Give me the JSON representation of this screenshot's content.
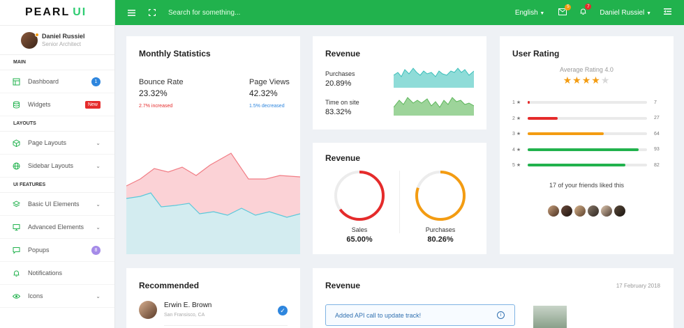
{
  "logo": {
    "brand": "PEARL",
    "suffix": "UI"
  },
  "profile": {
    "name": "Daniel Russiel",
    "role": "Senior Architect"
  },
  "sidebar": {
    "sections": [
      "MAIN",
      "LAYOUTS",
      "UI FEATURES"
    ],
    "items": [
      {
        "label": "Dashboard",
        "badge": "1"
      },
      {
        "label": "Widgets",
        "badge": "New"
      },
      {
        "label": "Page Layouts"
      },
      {
        "label": "Sidebar Layouts"
      },
      {
        "label": "Basic UI Elements"
      },
      {
        "label": "Advanced Elements"
      },
      {
        "label": "Popups",
        "badge": "8"
      },
      {
        "label": "Notifications"
      },
      {
        "label": "Icons"
      }
    ]
  },
  "topbar": {
    "search_placeholder": "Search for something...",
    "language": "English",
    "mail_count": "5",
    "notif_count": "7",
    "user": "Daniel Russiel"
  },
  "monthly": {
    "title": "Monthly Statistics",
    "bounce_label": "Bounce Rate",
    "bounce_value": "23.32%",
    "bounce_note": "2.7% increased",
    "views_label": "Page Views",
    "views_value": "42.32%",
    "views_note": "1.5% decreased"
  },
  "revenue1": {
    "title": "Revenue",
    "purchases_label": "Purchases",
    "purchases_value": "20.89%",
    "onsite_label": "Time on site",
    "onsite_value": "83.32%"
  },
  "revenue2": {
    "title": "Revenue",
    "sales_label": "Sales",
    "sales_value": "65.00%",
    "purchases_label": "Purchases",
    "purchases_value": "80.26%",
    "sales_percent": 65,
    "purchases_percent": 80.26
  },
  "rating": {
    "title": "User Rating",
    "average": "Average Rating 4.0",
    "stars": 4,
    "rows": [
      {
        "label": "1 ★",
        "count": "7",
        "level": 0.02,
        "color": "#e52b2b"
      },
      {
        "label": "2 ★",
        "count": "27",
        "level": 0.25,
        "color": "#e52b2b"
      },
      {
        "label": "3 ★",
        "count": "64",
        "level": 0.64,
        "color": "#f39c12"
      },
      {
        "label": "4 ★",
        "count": "93",
        "level": 0.93,
        "color": "#21b24d"
      },
      {
        "label": "5 ★",
        "count": "82",
        "level": 0.82,
        "color": "#21b24d"
      }
    ],
    "friends_text": "17 of your friends liked this"
  },
  "recommended": {
    "title": "Recommended",
    "name": "Erwin E. Brown",
    "location": "San Fransisco, CA"
  },
  "revenue3": {
    "title": "Revenue",
    "date": "17 February 2018",
    "alert": "Added API call to update track!"
  },
  "colors": {
    "brand_green": "#21b24d",
    "accent_red": "#e52b2b",
    "accent_orange": "#f39c12",
    "accent_blue": "#2e86de"
  }
}
